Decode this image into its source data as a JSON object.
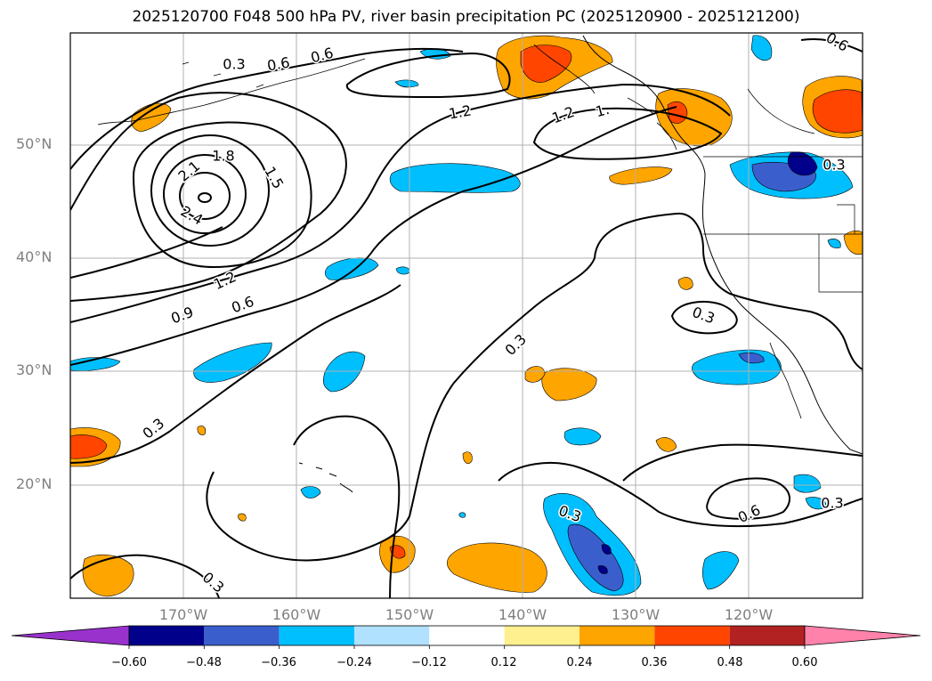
{
  "title": "2025120700 F048 500 hPa PV, river basin precipitation PC (2025120900 - 2025121200)",
  "lat_labels": [
    "50°N",
    "40°N",
    "30°N",
    "20°N"
  ],
  "lon_labels": [
    "170°W",
    "160°W",
    "150°W",
    "140°W",
    "130°W",
    "120°W"
  ],
  "colorbar": {
    "tick_labels": [
      "−0.60",
      "−0.48",
      "−0.36",
      "−0.24",
      "−0.12",
      "0.12",
      "0.24",
      "0.36",
      "0.48",
      "0.60"
    ],
    "under_color": "#9932cc",
    "colors": [
      "#00008b",
      "#3a5fcd",
      "#00bfff",
      "#b0e2ff",
      "#ffffff",
      "#fff08f",
      "#ffa500",
      "#ff4500",
      "#b22222"
    ],
    "over_color": "#ff82ab"
  },
  "contour_labels": [
    "0.3",
    "0.6",
    "0.6",
    "1.8",
    "2.1",
    "2.4",
    "1.5",
    "1.2",
    "0.9",
    "0.6",
    "1.2",
    "1.2",
    "1.",
    "0.3",
    "0.3",
    "0.3",
    "0.3",
    "0.3",
    "0.6",
    "0.3",
    "0.6",
    "0.3"
  ]
}
